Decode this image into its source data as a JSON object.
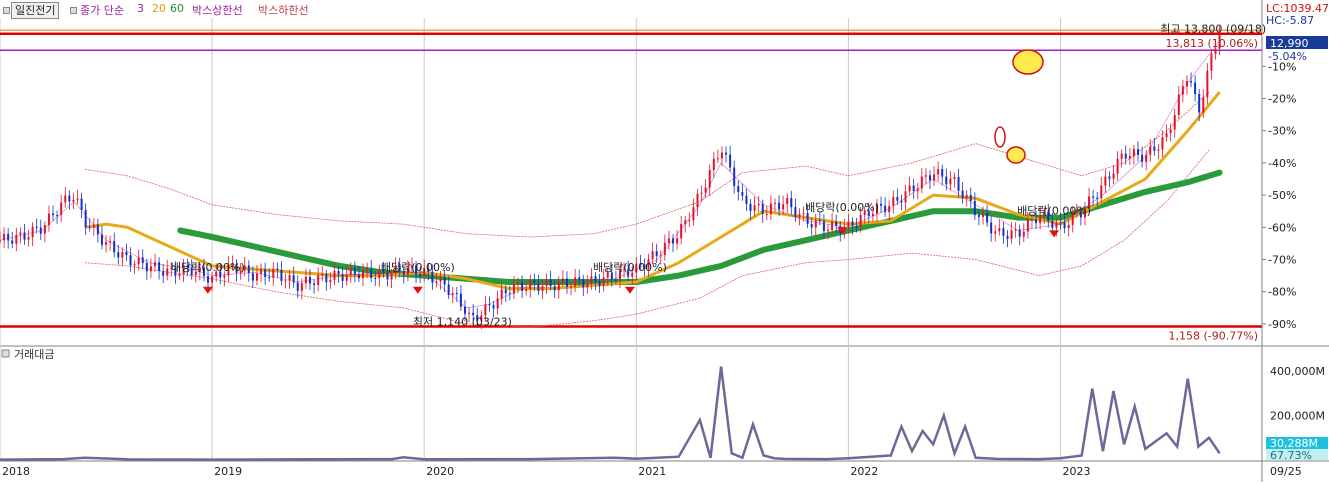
{
  "header": {
    "stock_name": "일진전기",
    "legend": [
      {
        "label": "종가 단순",
        "color": "#a020a0"
      },
      {
        "label": "3",
        "color": "#a020a0"
      },
      {
        "label": "20",
        "color": "#e0a000"
      },
      {
        "label": "60",
        "color": "#2a8a2a"
      },
      {
        "label": "박스상한선",
        "color": "#a020a0"
      },
      {
        "label": "박스하한선",
        "color": "#c04040"
      }
    ],
    "lc_label": "LC:1039.47",
    "hc_label": "HC:-5.87"
  },
  "volume_panel": {
    "title": "거래대금",
    "axis_labels": [
      "400,000M",
      "200,000M"
    ],
    "current_value": "30,288M",
    "current_pct": "67.73%"
  },
  "colors": {
    "up_candle": "#e8102a",
    "down_candle": "#1030c8",
    "ma3": "#a020a0",
    "ma20": "#e8a818",
    "ma60": "#2a9a3a",
    "envelope": "#e06060",
    "hline_red": "#e00000",
    "hline_orange": "#f0a050",
    "hline_purple": "#a020c0",
    "volume_line": "#6a6a9a",
    "highlight": "#ffea50"
  },
  "chart_data": {
    "type": "line",
    "price_axis": {
      "ylim_pct": [
        -95,
        5
      ],
      "tick_labels": [
        "-10%",
        "-20%",
        "-30%",
        "-40%",
        "-50%",
        "-60%",
        "-70%",
        "-80%",
        "-90%"
      ],
      "tick_values": [
        -10,
        -20,
        -30,
        -40,
        -50,
        -60,
        -70,
        -80,
        -90
      ],
      "current_price_label": "12,990",
      "current_pct_label": "-5.04%"
    },
    "x_axis": {
      "xlim": [
        2018.0,
        2023.95
      ],
      "tick_labels": [
        "2018",
        "2019",
        "2020",
        "2021",
        "2022",
        "2023"
      ],
      "tick_values": [
        2018.0,
        2019.0,
        2020.0,
        2021.0,
        2022.0,
        2023.0
      ],
      "end_label": "09/25"
    },
    "reference_lines": [
      {
        "name": "max-line",
        "value_pct": 0.1,
        "label": "13,813 (10.06%)"
      },
      {
        "name": "high-line",
        "value_pct": -5.0,
        "label": ""
      },
      {
        "name": "low-line",
        "value_pct": -90.8,
        "label": "1,158 (-90.77%)"
      }
    ],
    "annotations": [
      {
        "text": "최고 13,800 (09/18)",
        "x": 2023.72,
        "y": 0.5
      },
      {
        "text": "최저 1,140 (03/23)",
        "x": 2020.18,
        "y": -90.5
      },
      {
        "text": "배당락(0.00%)",
        "x": 2018.98,
        "y": -73.5
      },
      {
        "text": "배당락(0.00%)",
        "x": 2019.97,
        "y": -73.5
      },
      {
        "text": "배당락(0.00%)",
        "x": 2020.97,
        "y": -73.5
      },
      {
        "text": "배당락(0.00%)",
        "x": 2021.97,
        "y": -55.0
      },
      {
        "text": "배당락(0.00%)",
        "x": 2022.97,
        "y": -56.0
      }
    ],
    "series": [
      {
        "kind": "price",
        "x": [
          2018.0,
          2018.1,
          2018.2,
          2018.3,
          2018.35,
          2018.4,
          2018.5,
          2018.6,
          2018.7,
          2018.8,
          2018.9,
          2019.0,
          2019.1,
          2019.2,
          2019.3,
          2019.4,
          2019.5,
          2019.6,
          2019.7,
          2019.8,
          2019.9,
          2020.0,
          2020.1,
          2020.2,
          2020.22,
          2020.3,
          2020.4,
          2020.5,
          2020.6,
          2020.7,
          2020.8,
          2020.9,
          2021.0,
          2021.1,
          2021.2,
          2021.3,
          2021.4,
          2021.5,
          2021.6,
          2021.7,
          2021.8,
          2021.9,
          2022.0,
          2022.1,
          2022.2,
          2022.3,
          2022.4,
          2022.5,
          2022.6,
          2022.7,
          2022.8,
          2022.9,
          2023.0,
          2023.1,
          2023.2,
          2023.3,
          2023.4,
          2023.5,
          2023.6,
          2023.62,
          2023.65,
          2023.7,
          2023.75
        ],
        "y": [
          -64,
          -63,
          -60,
          -52,
          -50,
          -58,
          -65,
          -70,
          -72,
          -74,
          -73,
          -76,
          -72,
          -75,
          -74,
          -78,
          -76,
          -75,
          -74,
          -75,
          -73,
          -74,
          -78,
          -86,
          -89,
          -85,
          -79,
          -78,
          -78,
          -77,
          -77,
          -75,
          -73,
          -68,
          -62,
          -50,
          -35,
          -52,
          -55,
          -52,
          -58,
          -60,
          -60,
          -55,
          -53,
          -48,
          -43,
          -46,
          -55,
          -62,
          -62,
          -56,
          -60,
          -55,
          -47,
          -37,
          -38,
          -32,
          -12,
          -16,
          -25,
          -10,
          1
        ]
      },
      {
        "name": "3",
        "x": [
          2018.0,
          2018.2,
          2018.35,
          2018.5,
          2018.7,
          2018.9,
          2019.0,
          2019.2,
          2019.4,
          2019.6,
          2019.8,
          2020.0,
          2020.2,
          2020.3,
          2020.5,
          2020.7,
          2020.9,
          2021.1,
          2021.3,
          2021.4,
          2021.6,
          2021.8,
          2022.0,
          2022.2,
          2022.4,
          2022.6,
          2022.8,
          2023.0,
          2023.2,
          2023.4,
          2023.6,
          2023.75
        ],
        "y": [
          -64,
          -61,
          -52,
          -64,
          -71,
          -73,
          -75,
          -74,
          -77,
          -75,
          -74,
          -74,
          -85,
          -84,
          -78,
          -77,
          -76,
          -70,
          -53,
          -40,
          -53,
          -58,
          -60,
          -54,
          -45,
          -53,
          -61,
          -59,
          -50,
          -38,
          -15,
          -2
        ]
      },
      {
        "name": "20",
        "x": [
          2018.4,
          2018.5,
          2018.6,
          2018.8,
          2019.0,
          2019.2,
          2019.4,
          2019.6,
          2019.8,
          2020.0,
          2020.2,
          2020.4,
          2020.6,
          2020.8,
          2021.0,
          2021.2,
          2021.4,
          2021.6,
          2021.8,
          2022.0,
          2022.2,
          2022.4,
          2022.6,
          2022.8,
          2023.0,
          2023.2,
          2023.4,
          2023.6,
          2023.75
        ],
        "y": [
          -60,
          -59,
          -60,
          -66,
          -72,
          -73,
          -74,
          -75,
          -75,
          -74,
          -76,
          -79,
          -79,
          -78,
          -77,
          -71,
          -63,
          -55,
          -57,
          -59,
          -58,
          -50,
          -51,
          -56,
          -59,
          -52,
          -45,
          -30,
          -18
        ]
      },
      {
        "name": "60",
        "x": [
          2018.85,
          2019.0,
          2019.2,
          2019.4,
          2019.6,
          2019.8,
          2020.0,
          2020.2,
          2020.4,
          2020.6,
          2020.8,
          2021.0,
          2021.2,
          2021.4,
          2021.6,
          2021.8,
          2022.0,
          2022.2,
          2022.4,
          2022.6,
          2022.8,
          2023.0,
          2023.2,
          2023.4,
          2023.6,
          2023.75
        ],
        "y": [
          -61,
          -63,
          -66,
          -69,
          -72,
          -74,
          -75,
          -76,
          -77,
          -77,
          -77,
          -77,
          -75,
          -72,
          -67,
          -64,
          -61,
          -58,
          -55,
          -55,
          -57,
          -57,
          -53,
          -49,
          -46,
          -43
        ]
      },
      {
        "kind": "envelope",
        "x": [
          2018.4,
          2018.6,
          2018.8,
          2019.0,
          2019.3,
          2019.6,
          2019.9,
          2020.2,
          2020.5,
          2020.8,
          2021.0,
          2021.3,
          2021.5,
          2021.8,
          2022.0,
          2022.3,
          2022.6,
          2022.9,
          2023.1,
          2023.3,
          2023.5,
          2023.7
        ],
        "y": [
          -42,
          -44,
          -48,
          -53,
          -56,
          -58,
          -59,
          -62,
          -63,
          -62,
          -59,
          -52,
          -43,
          -41,
          -44,
          -40,
          -34,
          -40,
          -44,
          -40,
          -30,
          -18
        ]
      },
      {
        "kind": "envelope",
        "x": [
          2018.4,
          2018.6,
          2018.8,
          2019.0,
          2019.3,
          2019.6,
          2019.9,
          2020.2,
          2020.5,
          2020.8,
          2021.0,
          2021.3,
          2021.5,
          2021.8,
          2022.0,
          2022.3,
          2022.6,
          2022.9,
          2023.1,
          2023.3,
          2023.5,
          2023.7
        ],
        "y": [
          -71,
          -72,
          -74,
          -76,
          -80,
          -83,
          -85,
          -90,
          -91,
          -89,
          -87,
          -82,
          -75,
          -71,
          -70,
          -68,
          -70,
          -75,
          -72,
          -64,
          -52,
          -36
        ]
      }
    ],
    "volume": {
      "x": [
        2018.0,
        2018.3,
        2018.4,
        2018.6,
        2019.0,
        2019.5,
        2019.85,
        2019.9,
        2020.0,
        2020.5,
        2020.9,
        2021.0,
        2021.2,
        2021.3,
        2021.35,
        2021.4,
        2021.45,
        2021.5,
        2021.55,
        2021.6,
        2021.65,
        2021.7,
        2021.9,
        2022.0,
        2022.2,
        2022.25,
        2022.3,
        2022.35,
        2022.4,
        2022.45,
        2022.5,
        2022.55,
        2022.6,
        2022.7,
        2022.9,
        2023.0,
        2023.1,
        2023.15,
        2023.2,
        2023.25,
        2023.3,
        2023.35,
        2023.4,
        2023.5,
        2023.55,
        2023.6,
        2023.65,
        2023.7,
        2023.75
      ],
      "values": [
        2,
        4,
        10,
        3,
        2,
        3,
        4,
        12,
        3,
        4,
        10,
        6,
        15,
        180,
        10,
        420,
        30,
        10,
        160,
        20,
        8,
        5,
        4,
        8,
        20,
        150,
        40,
        130,
        70,
        200,
        30,
        150,
        10,
        5,
        4,
        8,
        20,
        320,
        40,
        310,
        70,
        240,
        50,
        120,
        60,
        365,
        60,
        100,
        30
      ]
    }
  }
}
